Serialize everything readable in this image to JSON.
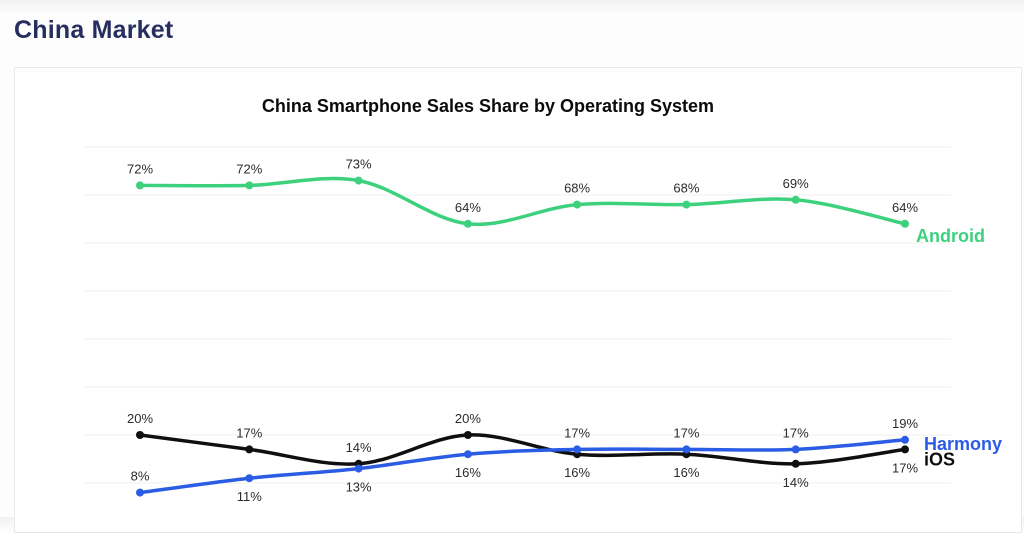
{
  "page": {
    "header": "China Market"
  },
  "chart_data": {
    "type": "line",
    "title": "China Smartphone Sales Share by Operating System",
    "x_labels_visible": false,
    "num_points": 8,
    "ylim": [
      0,
      80
    ],
    "grid": "horizontal-only",
    "gridlines": {
      "values_percent": [
        80,
        70,
        60,
        50,
        40,
        30,
        20,
        10
      ],
      "labels_visible": false
    },
    "value_suffix": "%",
    "legend_position": "right-end-of-lines",
    "series": [
      {
        "name": "Android",
        "color": "#3dd17e",
        "values": [
          72,
          72,
          73,
          64,
          68,
          68,
          69,
          64
        ],
        "label_positions": [
          "above",
          "above",
          "above",
          "above",
          "above",
          "above",
          "above",
          "above"
        ]
      },
      {
        "name": "iOS",
        "color": "#0f0f0f",
        "values": [
          20,
          17,
          14,
          20,
          16,
          16,
          14,
          17
        ],
        "label_positions": [
          "above",
          "above",
          "above",
          "above",
          "below",
          "below",
          "below",
          "below"
        ]
      },
      {
        "name": "Harmony",
        "color": "#2b5ce4",
        "values": [
          8,
          11,
          13,
          16,
          17,
          17,
          17,
          19
        ],
        "label_positions": [
          "above",
          "below",
          "below",
          "below",
          "above",
          "above",
          "above",
          "above"
        ]
      }
    ]
  }
}
